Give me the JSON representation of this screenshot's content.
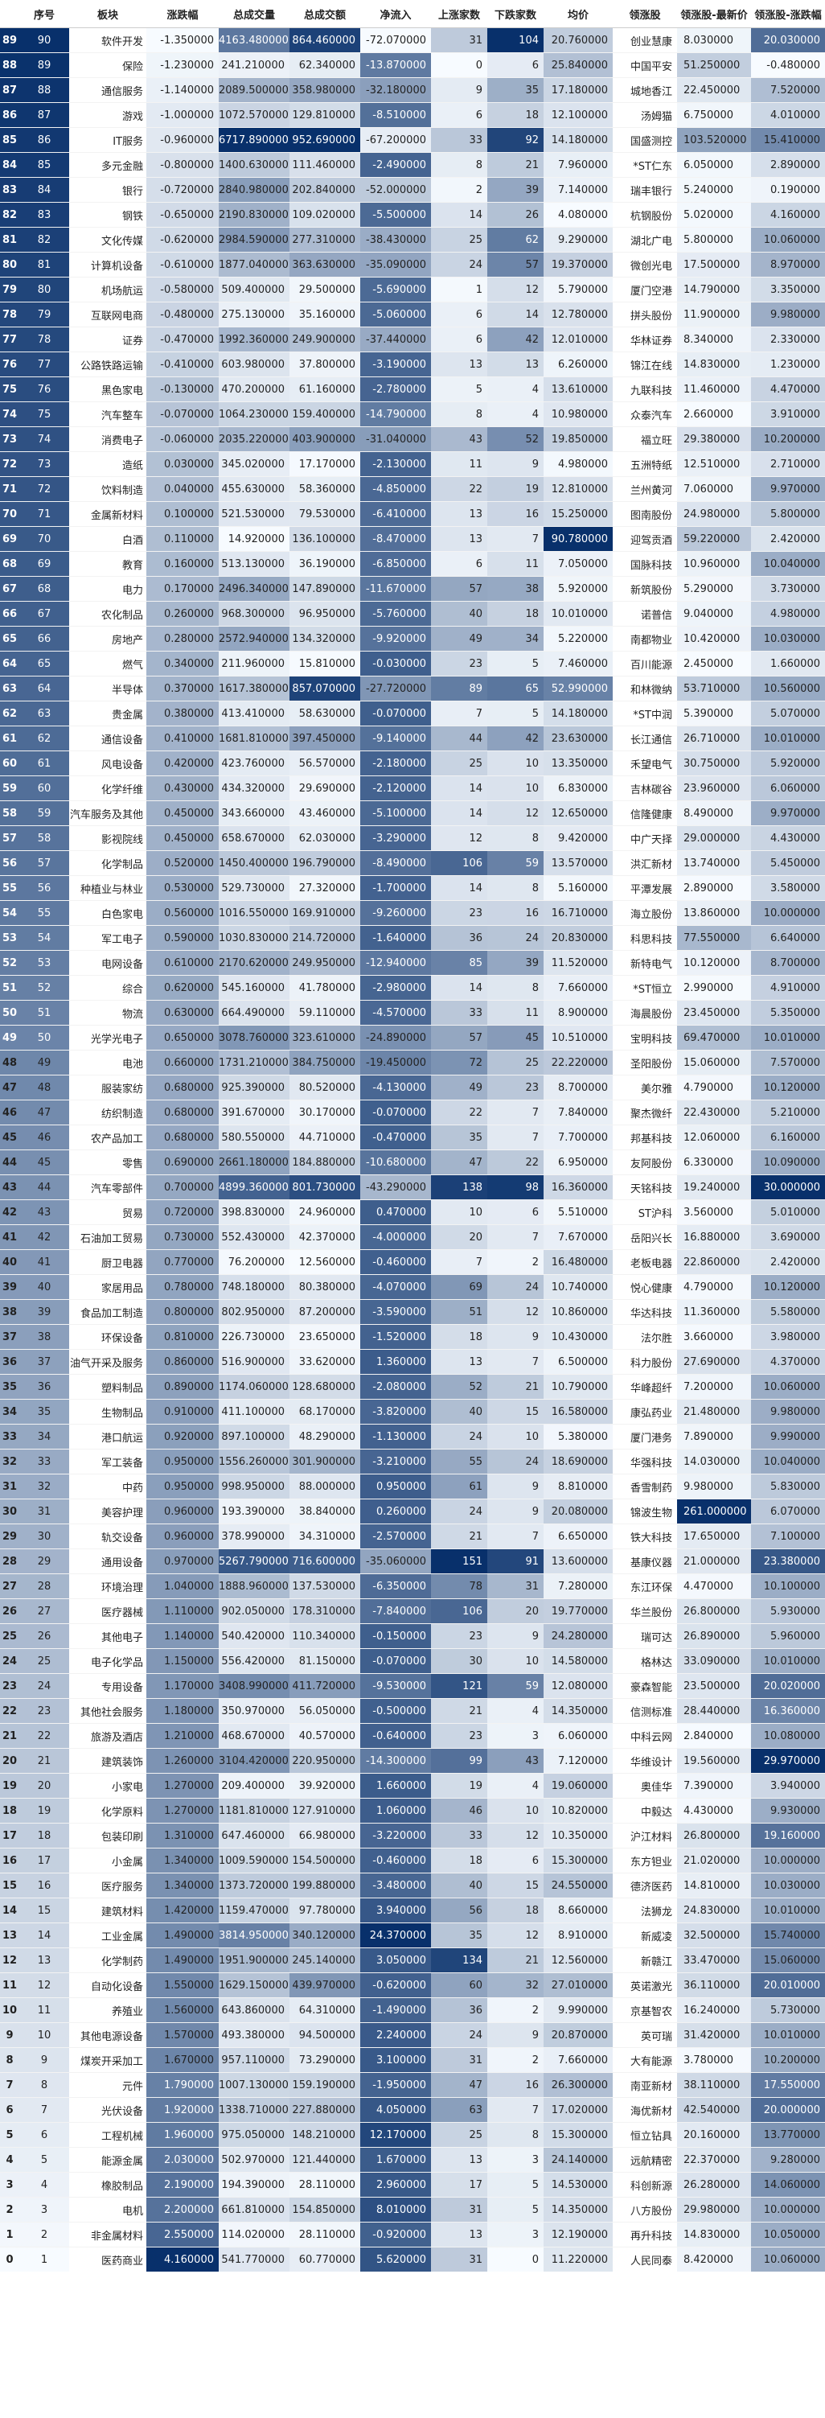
{
  "headers": [
    "",
    "序号",
    "板块",
    "涨跌幅",
    "总成交量",
    "总成交额",
    "净流入",
    "上涨家数",
    "下跌家数",
    "均价",
    "领涨股",
    "领涨股-最新价",
    "领涨股-涨跌幅"
  ],
  "rows": [
    [
      "89",
      "90",
      "软件开发",
      "-1.350000",
      "4163.480000",
      "864.460000",
      "-72.070000",
      "31",
      "104",
      "20.760000",
      "创业慧康",
      "8.030000",
      "20.030000"
    ],
    [
      "88",
      "89",
      "保险",
      "-1.230000",
      "241.210000",
      "62.340000",
      "-13.870000",
      "0",
      "6",
      "25.840000",
      "中国平安",
      "51.250000",
      "-0.480000"
    ],
    [
      "87",
      "88",
      "通信服务",
      "-1.140000",
      "2089.500000",
      "358.980000",
      "-32.180000",
      "9",
      "35",
      "17.180000",
      "城地香江",
      "22.450000",
      "7.520000"
    ],
    [
      "86",
      "87",
      "游戏",
      "-1.000000",
      "1072.570000",
      "129.810000",
      "-8.510000",
      "6",
      "18",
      "12.100000",
      "汤姆猫",
      "6.750000",
      "4.010000"
    ],
    [
      "85",
      "86",
      "IT服务",
      "-0.960000",
      "6717.890000",
      "952.690000",
      "-67.200000",
      "33",
      "92",
      "14.180000",
      "国盛测控",
      "103.520000",
      "15.410000"
    ],
    [
      "84",
      "85",
      "多元金融",
      "-0.800000",
      "1400.630000",
      "111.460000",
      "-2.490000",
      "8",
      "21",
      "7.960000",
      "*ST仁东",
      "6.050000",
      "2.890000"
    ],
    [
      "83",
      "84",
      "银行",
      "-0.720000",
      "2840.980000",
      "202.840000",
      "-52.000000",
      "2",
      "39",
      "7.140000",
      "瑞丰银行",
      "5.240000",
      "0.190000"
    ],
    [
      "82",
      "83",
      "钢铁",
      "-0.650000",
      "2190.830000",
      "109.020000",
      "-5.500000",
      "14",
      "26",
      "4.080000",
      "杭钢股份",
      "5.020000",
      "4.160000"
    ],
    [
      "81",
      "82",
      "文化传媒",
      "-0.620000",
      "2984.590000",
      "277.310000",
      "-38.430000",
      "25",
      "62",
      "9.290000",
      "湖北广电",
      "5.800000",
      "10.060000"
    ],
    [
      "80",
      "81",
      "计算机设备",
      "-0.610000",
      "1877.040000",
      "363.630000",
      "-35.090000",
      "24",
      "57",
      "19.370000",
      "微创光电",
      "17.500000",
      "8.970000"
    ],
    [
      "79",
      "80",
      "机场航运",
      "-0.580000",
      "509.400000",
      "29.500000",
      "-5.690000",
      "1",
      "12",
      "5.790000",
      "厦门空港",
      "14.790000",
      "3.350000"
    ],
    [
      "78",
      "79",
      "互联网电商",
      "-0.480000",
      "275.130000",
      "35.160000",
      "-5.060000",
      "6",
      "14",
      "12.780000",
      "拼头股份",
      "11.900000",
      "9.980000"
    ],
    [
      "77",
      "78",
      "证券",
      "-0.470000",
      "1992.360000",
      "249.900000",
      "-37.440000",
      "6",
      "42",
      "12.010000",
      "华林证券",
      "8.340000",
      "2.330000"
    ],
    [
      "76",
      "77",
      "公路铁路运输",
      "-0.410000",
      "603.980000",
      "37.800000",
      "-3.190000",
      "13",
      "13",
      "6.260000",
      "锦江在线",
      "14.830000",
      "1.230000"
    ],
    [
      "75",
      "76",
      "黑色家电",
      "-0.130000",
      "470.200000",
      "61.160000",
      "-2.780000",
      "5",
      "4",
      "13.610000",
      "九联科技",
      "11.460000",
      "4.470000"
    ],
    [
      "74",
      "75",
      "汽车整车",
      "-0.070000",
      "1064.230000",
      "159.400000",
      "-14.790000",
      "8",
      "4",
      "10.980000",
      "众泰汽车",
      "2.660000",
      "3.910000"
    ],
    [
      "73",
      "74",
      "消费电子",
      "-0.060000",
      "2035.220000",
      "403.900000",
      "-31.040000",
      "43",
      "52",
      "19.850000",
      "福立旺",
      "29.380000",
      "10.200000"
    ],
    [
      "72",
      "73",
      "造纸",
      "0.030000",
      "345.020000",
      "17.170000",
      "-2.130000",
      "11",
      "9",
      "4.980000",
      "五洲特纸",
      "12.510000",
      "2.710000"
    ],
    [
      "71",
      "72",
      "饮料制造",
      "0.040000",
      "455.630000",
      "58.360000",
      "-4.850000",
      "22",
      "19",
      "12.810000",
      "兰州黄河",
      "7.060000",
      "9.970000"
    ],
    [
      "70",
      "71",
      "金属新材料",
      "0.100000",
      "521.530000",
      "79.530000",
      "-6.410000",
      "13",
      "16",
      "15.250000",
      "图南股份",
      "24.980000",
      "5.800000"
    ],
    [
      "69",
      "70",
      "白酒",
      "0.110000",
      "14.920000",
      "136.100000",
      "-8.470000",
      "13",
      "7",
      "90.780000",
      "迎驾贡酒",
      "59.220000",
      "2.420000"
    ],
    [
      "68",
      "69",
      "教育",
      "0.160000",
      "513.130000",
      "36.190000",
      "-6.850000",
      "6",
      "11",
      "7.050000",
      "国脉科技",
      "10.960000",
      "10.040000"
    ],
    [
      "67",
      "68",
      "电力",
      "0.170000",
      "2496.340000",
      "147.890000",
      "-11.670000",
      "57",
      "38",
      "5.920000",
      "新筑股份",
      "5.290000",
      "3.730000"
    ],
    [
      "66",
      "67",
      "农化制品",
      "0.260000",
      "968.300000",
      "96.950000",
      "-5.760000",
      "40",
      "18",
      "10.010000",
      "诺普信",
      "9.040000",
      "4.980000"
    ],
    [
      "65",
      "66",
      "房地产",
      "0.280000",
      "2572.940000",
      "134.320000",
      "-9.920000",
      "49",
      "34",
      "5.220000",
      "南都物业",
      "10.420000",
      "10.030000"
    ],
    [
      "64",
      "65",
      "燃气",
      "0.340000",
      "211.960000",
      "15.810000",
      "-0.030000",
      "23",
      "5",
      "7.460000",
      "百川能源",
      "2.450000",
      "1.660000"
    ],
    [
      "63",
      "64",
      "半导体",
      "0.370000",
      "1617.380000",
      "857.070000",
      "-27.720000",
      "89",
      "65",
      "52.990000",
      "和林微纳",
      "53.710000",
      "10.560000"
    ],
    [
      "62",
      "63",
      "贵金属",
      "0.380000",
      "413.410000",
      "58.630000",
      "-0.070000",
      "7",
      "5",
      "14.180000",
      "*ST中润",
      "5.390000",
      "5.070000"
    ],
    [
      "61",
      "62",
      "通信设备",
      "0.410000",
      "1681.810000",
      "397.450000",
      "-9.140000",
      "44",
      "42",
      "23.630000",
      "长江通信",
      "26.710000",
      "10.010000"
    ],
    [
      "60",
      "61",
      "风电设备",
      "0.420000",
      "423.760000",
      "56.570000",
      "-2.180000",
      "25",
      "10",
      "13.350000",
      "禾望电气",
      "30.750000",
      "5.920000"
    ],
    [
      "59",
      "60",
      "化学纤维",
      "0.430000",
      "434.320000",
      "29.690000",
      "-2.120000",
      "14",
      "10",
      "6.830000",
      "吉林碳谷",
      "23.960000",
      "6.060000"
    ],
    [
      "58",
      "59",
      "汽车服务及其他",
      "0.450000",
      "343.660000",
      "43.460000",
      "-5.100000",
      "14",
      "12",
      "12.650000",
      "信隆健康",
      "8.490000",
      "9.970000"
    ],
    [
      "57",
      "58",
      "影视院线",
      "0.450000",
      "658.670000",
      "62.030000",
      "-3.290000",
      "12",
      "8",
      "9.420000",
      "中广天择",
      "29.000000",
      "4.430000"
    ],
    [
      "56",
      "57",
      "化学制品",
      "0.520000",
      "1450.400000",
      "196.790000",
      "-8.490000",
      "106",
      "59",
      "13.570000",
      "洪汇新材",
      "13.740000",
      "5.450000"
    ],
    [
      "55",
      "56",
      "种植业与林业",
      "0.530000",
      "529.730000",
      "27.320000",
      "-1.700000",
      "14",
      "8",
      "5.160000",
      "平潭发展",
      "2.890000",
      "3.580000"
    ],
    [
      "54",
      "55",
      "白色家电",
      "0.560000",
      "1016.550000",
      "169.910000",
      "-9.260000",
      "23",
      "16",
      "16.710000",
      "海立股份",
      "13.860000",
      "10.000000"
    ],
    [
      "53",
      "54",
      "军工电子",
      "0.590000",
      "1030.830000",
      "214.720000",
      "-1.640000",
      "36",
      "24",
      "20.830000",
      "科思科技",
      "77.550000",
      "6.640000"
    ],
    [
      "52",
      "53",
      "电网设备",
      "0.610000",
      "2170.620000",
      "249.950000",
      "-12.940000",
      "85",
      "39",
      "11.520000",
      "新特电气",
      "10.120000",
      "8.700000"
    ],
    [
      "51",
      "52",
      "综合",
      "0.620000",
      "545.160000",
      "41.780000",
      "-2.980000",
      "14",
      "8",
      "7.660000",
      "*ST恒立",
      "2.990000",
      "4.910000"
    ],
    [
      "50",
      "51",
      "物流",
      "0.630000",
      "664.490000",
      "59.110000",
      "-4.570000",
      "33",
      "11",
      "8.900000",
      "海晨股份",
      "23.450000",
      "5.350000"
    ],
    [
      "49",
      "50",
      "光学光电子",
      "0.650000",
      "3078.760000",
      "323.610000",
      "-24.890000",
      "57",
      "45",
      "10.510000",
      "宝明科技",
      "69.470000",
      "10.010000"
    ],
    [
      "48",
      "49",
      "电池",
      "0.660000",
      "1731.210000",
      "384.750000",
      "-19.450000",
      "72",
      "25",
      "22.220000",
      "圣阳股份",
      "15.060000",
      "7.570000"
    ],
    [
      "47",
      "48",
      "服装家纺",
      "0.680000",
      "925.390000",
      "80.520000",
      "-4.130000",
      "49",
      "23",
      "8.700000",
      "美尔雅",
      "4.790000",
      "10.120000"
    ],
    [
      "46",
      "47",
      "纺织制造",
      "0.680000",
      "391.670000",
      "30.170000",
      "-0.070000",
      "22",
      "7",
      "7.840000",
      "聚杰微纤",
      "22.430000",
      "5.210000"
    ],
    [
      "45",
      "46",
      "农产品加工",
      "0.680000",
      "580.550000",
      "44.710000",
      "-0.470000",
      "35",
      "7",
      "7.700000",
      "邦基科技",
      "12.060000",
      "6.160000"
    ],
    [
      "44",
      "45",
      "零售",
      "0.690000",
      "2661.180000",
      "184.880000",
      "-10.680000",
      "47",
      "22",
      "6.950000",
      "友阿股份",
      "6.330000",
      "10.090000"
    ],
    [
      "43",
      "44",
      "汽车零部件",
      "0.700000",
      "4899.360000",
      "801.730000",
      "-43.290000",
      "138",
      "98",
      "16.360000",
      "天铭科技",
      "19.240000",
      "30.000000"
    ],
    [
      "42",
      "43",
      "贸易",
      "0.720000",
      "398.830000",
      "24.960000",
      "0.470000",
      "10",
      "6",
      "5.510000",
      "ST沪科",
      "3.560000",
      "5.010000"
    ],
    [
      "41",
      "42",
      "石油加工贸易",
      "0.730000",
      "552.430000",
      "42.370000",
      "-4.000000",
      "20",
      "7",
      "7.670000",
      "岳阳兴长",
      "16.880000",
      "3.690000"
    ],
    [
      "40",
      "41",
      "厨卫电器",
      "0.770000",
      "76.200000",
      "12.560000",
      "-0.460000",
      "7",
      "2",
      "16.480000",
      "老板电器",
      "22.860000",
      "2.420000"
    ],
    [
      "39",
      "40",
      "家居用品",
      "0.780000",
      "748.180000",
      "80.380000",
      "-4.070000",
      "69",
      "24",
      "10.740000",
      "悦心健康",
      "4.790000",
      "10.120000"
    ],
    [
      "38",
      "39",
      "食品加工制造",
      "0.800000",
      "802.950000",
      "87.200000",
      "-3.590000",
      "51",
      "12",
      "10.860000",
      "华达科技",
      "11.360000",
      "5.580000"
    ],
    [
      "37",
      "38",
      "环保设备",
      "0.810000",
      "226.730000",
      "23.650000",
      "-1.520000",
      "18",
      "9",
      "10.430000",
      "法尔胜",
      "3.660000",
      "3.980000"
    ],
    [
      "36",
      "37",
      "油气开采及服务",
      "0.860000",
      "516.900000",
      "33.620000",
      "1.360000",
      "13",
      "7",
      "6.500000",
      "科力股份",
      "27.690000",
      "4.370000"
    ],
    [
      "35",
      "36",
      "塑料制品",
      "0.890000",
      "1174.060000",
      "128.680000",
      "-2.080000",
      "52",
      "21",
      "10.790000",
      "华峰超纤",
      "7.200000",
      "10.060000"
    ],
    [
      "34",
      "35",
      "生物制品",
      "0.910000",
      "411.100000",
      "68.170000",
      "-3.820000",
      "40",
      "15",
      "16.580000",
      "康弘药业",
      "21.480000",
      "9.980000"
    ],
    [
      "33",
      "34",
      "港口航运",
      "0.920000",
      "897.100000",
      "48.290000",
      "-1.130000",
      "24",
      "10",
      "5.380000",
      "厦门港务",
      "7.890000",
      "9.990000"
    ],
    [
      "32",
      "33",
      "军工装备",
      "0.950000",
      "1556.260000",
      "301.900000",
      "-3.210000",
      "55",
      "24",
      "18.690000",
      "华强科技",
      "14.030000",
      "10.040000"
    ],
    [
      "31",
      "32",
      "中药",
      "0.950000",
      "998.950000",
      "88.000000",
      "0.950000",
      "61",
      "9",
      "8.810000",
      "香雪制药",
      "9.980000",
      "5.830000"
    ],
    [
      "30",
      "31",
      "美容护理",
      "0.960000",
      "193.390000",
      "38.840000",
      "0.260000",
      "24",
      "9",
      "20.080000",
      "锦波生物",
      "261.000000",
      "6.070000"
    ],
    [
      "29",
      "30",
      "轨交设备",
      "0.960000",
      "378.990000",
      "34.310000",
      "-2.570000",
      "21",
      "7",
      "6.650000",
      "铁大科技",
      "17.650000",
      "7.100000"
    ],
    [
      "28",
      "29",
      "通用设备",
      "0.970000",
      "5267.790000",
      "716.600000",
      "-35.060000",
      "151",
      "91",
      "13.600000",
      "基康仪器",
      "21.000000",
      "23.380000"
    ],
    [
      "27",
      "28",
      "环境治理",
      "1.040000",
      "1888.960000",
      "137.530000",
      "-6.350000",
      "78",
      "31",
      "7.280000",
      "东江环保",
      "4.470000",
      "10.100000"
    ],
    [
      "26",
      "27",
      "医疗器械",
      "1.110000",
      "902.050000",
      "178.310000",
      "-7.840000",
      "106",
      "20",
      "19.770000",
      "华兰股份",
      "26.800000",
      "5.930000"
    ],
    [
      "25",
      "26",
      "其他电子",
      "1.140000",
      "540.420000",
      "110.340000",
      "-0.150000",
      "23",
      "9",
      "24.280000",
      "瑞可达",
      "26.890000",
      "5.960000"
    ],
    [
      "24",
      "25",
      "电子化学品",
      "1.150000",
      "556.420000",
      "81.150000",
      "-0.070000",
      "30",
      "10",
      "14.580000",
      "格林达",
      "33.090000",
      "10.010000"
    ],
    [
      "23",
      "24",
      "专用设备",
      "1.170000",
      "3408.990000",
      "411.720000",
      "-9.530000",
      "121",
      "59",
      "12.080000",
      "豪森智能",
      "23.500000",
      "20.020000"
    ],
    [
      "22",
      "23",
      "其他社会服务",
      "1.180000",
      "350.970000",
      "56.050000",
      "-0.500000",
      "21",
      "4",
      "14.350000",
      "信测标准",
      "28.440000",
      "16.360000"
    ],
    [
      "21",
      "22",
      "旅游及酒店",
      "1.210000",
      "468.670000",
      "40.570000",
      "-0.640000",
      "23",
      "3",
      "6.060000",
      "中科云网",
      "2.840000",
      "10.080000"
    ],
    [
      "20",
      "21",
      "建筑装饰",
      "1.260000",
      "3104.420000",
      "220.950000",
      "-14.300000",
      "99",
      "43",
      "7.120000",
      "华维设计",
      "19.560000",
      "29.970000"
    ],
    [
      "19",
      "20",
      "小家电",
      "1.270000",
      "209.400000",
      "39.920000",
      "1.660000",
      "19",
      "4",
      "19.060000",
      "奥佳华",
      "7.390000",
      "3.940000"
    ],
    [
      "18",
      "19",
      "化学原料",
      "1.270000",
      "1181.810000",
      "127.910000",
      "1.060000",
      "46",
      "10",
      "10.820000",
      "中毅达",
      "4.430000",
      "9.930000"
    ],
    [
      "17",
      "18",
      "包装印刷",
      "1.310000",
      "647.460000",
      "66.980000",
      "-3.220000",
      "33",
      "12",
      "10.350000",
      "沪江材料",
      "26.800000",
      "19.160000"
    ],
    [
      "16",
      "17",
      "小金属",
      "1.340000",
      "1009.590000",
      "154.500000",
      "-0.460000",
      "18",
      "6",
      "15.300000",
      "东方钽业",
      "21.020000",
      "10.000000"
    ],
    [
      "15",
      "16",
      "医疗服务",
      "1.340000",
      "1373.720000",
      "199.880000",
      "-3.480000",
      "40",
      "15",
      "24.550000",
      "德济医药",
      "14.810000",
      "10.030000"
    ],
    [
      "14",
      "15",
      "建筑材料",
      "1.420000",
      "1159.470000",
      "97.780000",
      "3.940000",
      "56",
      "18",
      "8.660000",
      "法狮龙",
      "24.830000",
      "10.010000"
    ],
    [
      "13",
      "14",
      "工业金属",
      "1.490000",
      "3814.950000",
      "340.120000",
      "24.370000",
      "35",
      "12",
      "8.910000",
      "新威凌",
      "32.500000",
      "15.740000"
    ],
    [
      "12",
      "13",
      "化学制药",
      "1.490000",
      "1951.900000",
      "245.140000",
      "3.050000",
      "134",
      "21",
      "12.560000",
      "新赣江",
      "33.470000",
      "15.060000"
    ],
    [
      "11",
      "12",
      "自动化设备",
      "1.550000",
      "1629.150000",
      "439.970000",
      "-0.620000",
      "60",
      "32",
      "27.010000",
      "英诺激光",
      "36.110000",
      "20.010000"
    ],
    [
      "10",
      "11",
      "养殖业",
      "1.560000",
      "643.860000",
      "64.310000",
      "-1.490000",
      "36",
      "2",
      "9.990000",
      "京基智农",
      "16.240000",
      "5.730000"
    ],
    [
      "9",
      "10",
      "其他电源设备",
      "1.570000",
      "493.380000",
      "94.500000",
      "2.240000",
      "24",
      "9",
      "20.870000",
      "英可瑞",
      "31.420000",
      "10.010000"
    ],
    [
      "8",
      "9",
      "煤炭开采加工",
      "1.670000",
      "957.110000",
      "73.290000",
      "3.100000",
      "31",
      "2",
      "7.660000",
      "大有能源",
      "3.780000",
      "10.200000"
    ],
    [
      "7",
      "8",
      "元件",
      "1.790000",
      "1007.130000",
      "159.190000",
      "-1.950000",
      "47",
      "16",
      "26.300000",
      "南亚新材",
      "38.110000",
      "17.550000"
    ],
    [
      "6",
      "7",
      "光伏设备",
      "1.920000",
      "1338.710000",
      "227.880000",
      "4.050000",
      "63",
      "7",
      "17.020000",
      "海优新材",
      "42.540000",
      "20.000000"
    ],
    [
      "5",
      "6",
      "工程机械",
      "1.960000",
      "975.050000",
      "148.210000",
      "12.170000",
      "25",
      "8",
      "15.300000",
      "恒立钻具",
      "20.160000",
      "13.770000"
    ],
    [
      "4",
      "5",
      "能源金属",
      "2.030000",
      "502.970000",
      "121.440000",
      "1.670000",
      "13",
      "3",
      "24.140000",
      "远航精密",
      "22.370000",
      "9.280000"
    ],
    [
      "3",
      "4",
      "橡胶制品",
      "2.190000",
      "194.390000",
      "28.110000",
      "2.960000",
      "17",
      "5",
      "14.530000",
      "科创新源",
      "26.280000",
      "14.060000"
    ],
    [
      "2",
      "3",
      "电机",
      "2.200000",
      "661.810000",
      "154.850000",
      "8.010000",
      "31",
      "5",
      "14.350000",
      "八方股份",
      "29.980000",
      "10.000000"
    ],
    [
      "1",
      "2",
      "非金属材料",
      "2.550000",
      "114.020000",
      "28.110000",
      "-0.920000",
      "13",
      "3",
      "12.190000",
      "再升科技",
      "14.830000",
      "10.050000"
    ],
    [
      "0",
      "1",
      "医药商业",
      "4.160000",
      "541.770000",
      "60.770000",
      "5.620000",
      "31",
      "0",
      "11.220000",
      "人民同泰",
      "8.420000",
      "10.060000"
    ]
  ]
}
